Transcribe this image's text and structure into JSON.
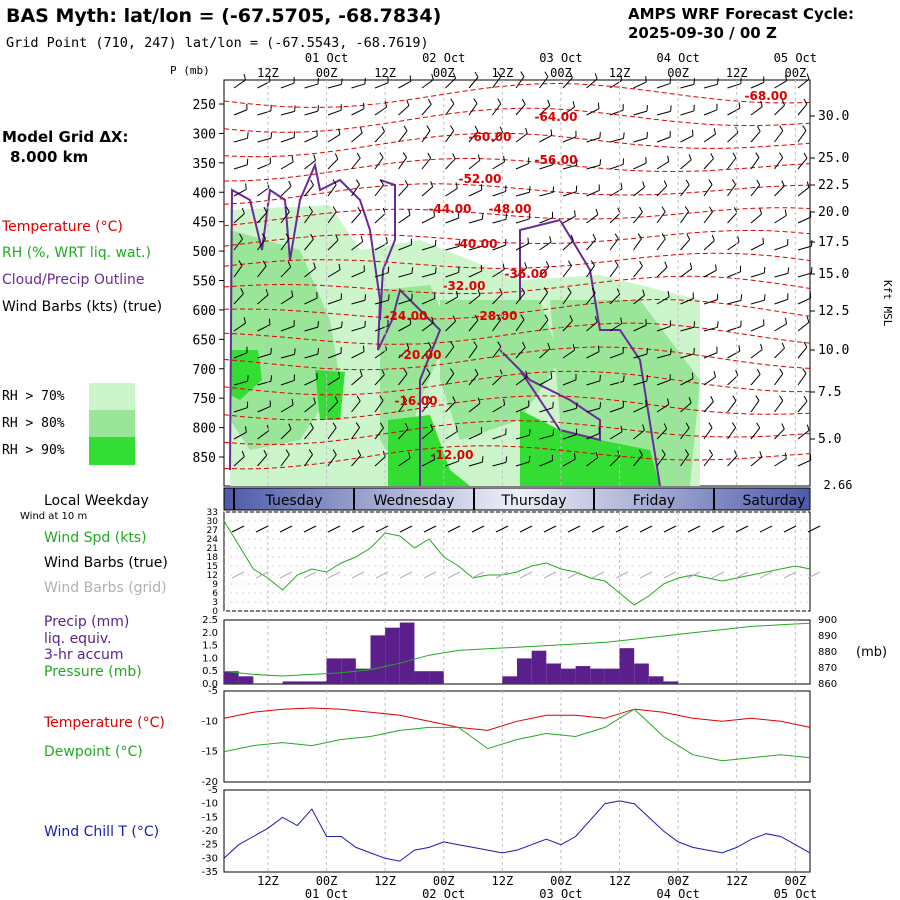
{
  "header": {
    "title": "BAS Myth:  lat/lon = (-67.5705, -68.7834)",
    "grid_point": "Grid Point (710, 247) lat/lon = (-67.5543, -68.7619)",
    "cycle_line1": "AMPS WRF Forecast Cycle:",
    "cycle_line2": "2025-09-30 / 00  Z"
  },
  "side": {
    "model_grid_line1": "Model Grid ΔX:",
    "model_grid_line2": "8.000 km",
    "temp_label": "Temperature (°C)",
    "rh_label": "RH (%, WRT liq. wat.)",
    "cloud_label": "Cloud/Precip Outline",
    "wind_label": "Wind Barbs (kts) (true)",
    "rh70": "RH > 70%",
    "rh80": "RH > 80%",
    "rh90": "RH > 90%",
    "local_weekday": "Local Weekday",
    "wind_10m": "Wind at 10 m",
    "wind_spd": "Wind Spd (kts)",
    "barbs_true": "Wind Barbs (true)",
    "barbs_grid": "Wind Barbs (grid)",
    "precip1": "Precip (mm)",
    "precip2": "liq. equiv.",
    "precip3": "3-hr accum",
    "pressure_label": "Pressure (mb)",
    "temperature_label": "Temperature (°C)",
    "dewpoint_label": "Dewpoint (°C)",
    "windchill_label": "Wind Chill T (°C)",
    "p_axis_label": "P (mb)",
    "kft_label": "Kft MSL",
    "mb_label": "(mb)",
    "sfc_height": "2.66"
  },
  "colors": {
    "temp": "#dd0000",
    "rh": "#22aa22",
    "cloud": "#6a2a9a",
    "precip_bar": "#5a1f8a",
    "windchill": "#1a1ab4",
    "rh70": "#ccf5cc",
    "rh80": "#99e699",
    "rh90": "#33dd33",
    "weekday_band": "#4d5aa8"
  },
  "chart_data": [
    {
      "type": "heatmap",
      "title": "Time-height cross section",
      "x_tick_labels": [
        "12Z",
        "00Z",
        "12Z",
        "00Z",
        "12Z",
        "00Z",
        "12Z",
        "00Z",
        "12Z",
        "00Z"
      ],
      "date_labels": [
        "01 Oct",
        "02 Oct",
        "03 Oct",
        "04 Oct",
        "05 Oct"
      ],
      "pressure_levels": [
        250,
        300,
        350,
        400,
        450,
        500,
        550,
        600,
        650,
        700,
        750,
        800,
        850
      ],
      "height_kft": [
        30.0,
        25.0,
        22.5,
        20.0,
        17.5,
        15.0,
        12.5,
        10.0,
        7.5,
        5.0
      ],
      "temperature_contour_labels": [
        "-68.00",
        "-64.00",
        "-60.00",
        "-56.00",
        "-52.00",
        "-48.00",
        "-44.00",
        "-40.00",
        "-36.00",
        "-32.00",
        "-28.00",
        "-24.00",
        "-20.00",
        "-16.00",
        "-12.00"
      ]
    },
    {
      "type": "line",
      "title": "Wind Spd (kts)",
      "yticks": [
        0,
        3,
        6,
        9,
        12,
        15,
        18,
        21,
        24,
        27,
        30,
        33
      ],
      "ylim": [
        0,
        33
      ],
      "hours": [
        0,
        3,
        6,
        9,
        12,
        15,
        18,
        21,
        24,
        27,
        30,
        33,
        36,
        39,
        42,
        45,
        48,
        51,
        54,
        57,
        60,
        63,
        66,
        69,
        72,
        75,
        78,
        81,
        84,
        87,
        90,
        93,
        96,
        99,
        102,
        105,
        108,
        111,
        114,
        117,
        120
      ],
      "values": [
        30,
        22,
        14,
        11,
        7,
        12,
        14,
        13,
        16,
        18,
        21,
        26,
        25,
        21,
        24,
        18,
        15,
        11,
        12,
        12,
        13,
        15,
        16,
        14,
        13,
        11,
        10,
        6,
        2,
        5,
        9,
        11,
        12,
        11,
        10,
        11,
        12,
        13,
        14,
        15,
        14
      ]
    },
    {
      "type": "bar",
      "title": "Precip (mm) liq. equiv. 3-hr accum",
      "yticks": [
        0.0,
        0.5,
        1.0,
        1.5,
        2.0,
        2.5
      ],
      "ylim": [
        0,
        2.5
      ],
      "bar_width_hours": 3,
      "starts": [
        0,
        3,
        12,
        15,
        18,
        21,
        24,
        27,
        30,
        33,
        36,
        39,
        42,
        57,
        60,
        63,
        66,
        69,
        72,
        75,
        78,
        81,
        84,
        87,
        90
      ],
      "values": [
        0.5,
        0.3,
        0.1,
        0.1,
        0.1,
        1.0,
        1.0,
        0.6,
        1.9,
        2.2,
        2.4,
        0.5,
        0.5,
        0.3,
        1.0,
        1.3,
        0.8,
        0.6,
        0.7,
        0.6,
        0.6,
        1.4,
        0.8,
        0.3,
        0.1
      ],
      "pressure": {
        "ylim": [
          860,
          900
        ],
        "yticks": [
          860,
          870,
          880,
          890,
          900
        ],
        "hours": [
          0,
          6,
          12,
          18,
          24,
          30,
          36,
          42,
          48,
          54,
          60,
          66,
          72,
          78,
          84,
          90,
          96,
          102,
          108,
          114,
          120
        ],
        "values": [
          868,
          866,
          865,
          866,
          867,
          869,
          873,
          878,
          881,
          882,
          883,
          884,
          885,
          886,
          888,
          890,
          892,
          894,
          896,
          897,
          898
        ]
      }
    },
    {
      "type": "line",
      "title": "Temperature / Dewpoint (°C)",
      "ylim": [
        -20,
        -5
      ],
      "yticks": [
        -5,
        -10,
        -15,
        -20
      ],
      "hours": [
        0,
        6,
        12,
        18,
        24,
        30,
        36,
        42,
        48,
        54,
        60,
        66,
        72,
        78,
        84,
        90,
        96,
        102,
        108,
        114,
        120
      ],
      "series": [
        {
          "name": "Temperature",
          "values": [
            -9.5,
            -8.5,
            -8.0,
            -7.8,
            -8.0,
            -8.5,
            -9.0,
            -10.0,
            -11.0,
            -11.5,
            -10.0,
            -9.0,
            -9.0,
            -9.5,
            -8.0,
            -8.5,
            -9.5,
            -10.0,
            -9.5,
            -10.0,
            -11.0
          ]
        },
        {
          "name": "Dewpoint",
          "values": [
            -15.0,
            -14.0,
            -13.5,
            -14.0,
            -13.0,
            -12.5,
            -11.5,
            -11.0,
            -11.0,
            -14.5,
            -13.0,
            -12.0,
            -12.5,
            -11.0,
            -8.0,
            -12.5,
            -15.5,
            -16.5,
            -16.0,
            -15.5,
            -16.0
          ]
        }
      ]
    },
    {
      "type": "line",
      "title": "Wind Chill T (°C)",
      "ylim": [
        -35,
        -5
      ],
      "yticks": [
        -5,
        -10,
        -15,
        -20,
        -25,
        -30,
        -35
      ],
      "hours": [
        0,
        3,
        6,
        9,
        12,
        15,
        18,
        21,
        24,
        27,
        30,
        33,
        36,
        39,
        42,
        45,
        48,
        51,
        54,
        57,
        60,
        63,
        66,
        69,
        72,
        75,
        78,
        81,
        84,
        87,
        90,
        93,
        96,
        99,
        102,
        105,
        108,
        111,
        114,
        117,
        120
      ],
      "values": [
        -30,
        -25,
        -22,
        -19,
        -15,
        -18,
        -12,
        -22,
        -22,
        -26,
        -28,
        -30,
        -31,
        -27,
        -26,
        -24,
        -25,
        -26,
        -27,
        -28,
        -27,
        -25,
        -23,
        -25,
        -22,
        -16,
        -10,
        -9,
        -10,
        -15,
        -20,
        -24,
        -26,
        -27,
        -28,
        -26,
        -23,
        -21,
        -22,
        -25,
        -28
      ]
    }
  ],
  "weekdays": [
    "Tuesday",
    "Wednesday",
    "Thursday",
    "Friday",
    "Saturday"
  ]
}
